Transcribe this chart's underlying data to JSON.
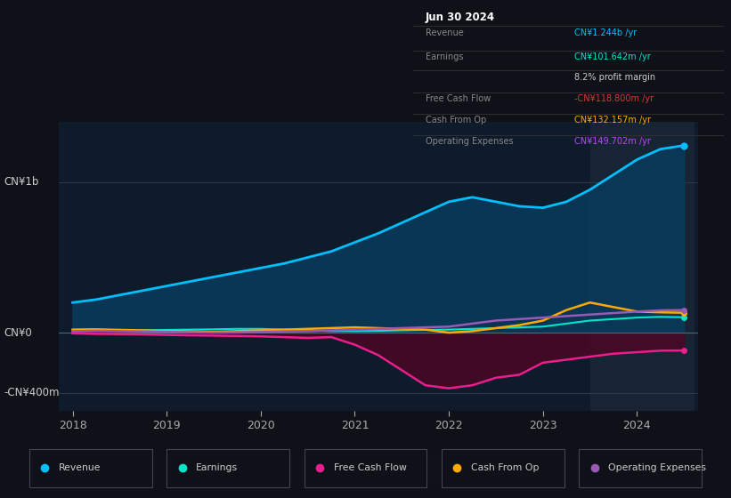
{
  "background_color": "#0e1117",
  "plot_bg_color": "#0d1b2a",
  "title_box": {
    "date": "Jun 30 2024",
    "rows": [
      {
        "label": "Revenue",
        "value": "CN¥1.244b /yr",
        "value_color": "#00bfff"
      },
      {
        "label": "Earnings",
        "value": "CN¥101.642m /yr",
        "value_color": "#00e5cc"
      },
      {
        "label": "",
        "value": "8.2% profit margin",
        "value_color": "#cccccc"
      },
      {
        "label": "Free Cash Flow",
        "value": "-CN¥118.800m /yr",
        "value_color": "#e63232"
      },
      {
        "label": "Cash From Op",
        "value": "CN¥132.157m /yr",
        "value_color": "#ffaa00"
      },
      {
        "label": "Operating Expenses",
        "value": "CN¥149.702m /yr",
        "value_color": "#bb44ff"
      }
    ]
  },
  "ylabel_top": "CN¥1b",
  "ylabel_zero": "CN¥0",
  "ylabel_bottom": "-CN¥400m",
  "ylim_top": 1400,
  "ylim_bottom": -520,
  "years": [
    2018.0,
    2018.25,
    2018.5,
    2018.75,
    2019.0,
    2019.25,
    2019.5,
    2019.75,
    2020.0,
    2020.25,
    2020.5,
    2020.75,
    2021.0,
    2021.25,
    2021.5,
    2021.75,
    2022.0,
    2022.25,
    2022.5,
    2022.75,
    2023.0,
    2023.25,
    2023.5,
    2023.75,
    2024.0,
    2024.25,
    2024.5
  ],
  "revenue": [
    200,
    220,
    250,
    280,
    310,
    340,
    370,
    400,
    430,
    460,
    500,
    540,
    600,
    660,
    730,
    800,
    870,
    900,
    870,
    840,
    830,
    870,
    950,
    1050,
    1150,
    1220,
    1244
  ],
  "earnings": [
    10,
    12,
    14,
    16,
    18,
    20,
    22,
    25,
    25,
    20,
    15,
    10,
    10,
    12,
    15,
    18,
    20,
    25,
    30,
    35,
    40,
    60,
    80,
    90,
    100,
    105,
    102
  ],
  "free_cash_flow": [
    -5,
    -8,
    -10,
    -12,
    -15,
    -18,
    -20,
    -22,
    -25,
    -30,
    -35,
    -30,
    -80,
    -150,
    -250,
    -350,
    -370,
    -350,
    -300,
    -280,
    -200,
    -180,
    -160,
    -140,
    -130,
    -120,
    -119
  ],
  "cash_from_op": [
    20,
    22,
    18,
    15,
    10,
    8,
    5,
    10,
    15,
    20,
    25,
    30,
    35,
    30,
    25,
    20,
    0,
    10,
    30,
    50,
    80,
    150,
    200,
    170,
    140,
    135,
    132
  ],
  "operating_expenses": [
    10,
    12,
    10,
    8,
    5,
    3,
    0,
    2,
    5,
    8,
    10,
    15,
    20,
    25,
    30,
    35,
    40,
    60,
    80,
    90,
    100,
    110,
    120,
    130,
    140,
    148,
    150
  ],
  "revenue_color": "#00bfff",
  "earnings_color": "#00e5cc",
  "fcf_color": "#e91e8c",
  "cashop_color": "#ffaa00",
  "opex_color": "#9b59b6",
  "revenue_fill": "#0a3a5c",
  "fcf_fill": "#4a0825",
  "highlight_x_start": 2023.5,
  "highlight_x_end": 2024.6,
  "xlim": [
    2017.85,
    2024.65
  ],
  "xtick_years": [
    2018,
    2019,
    2020,
    2021,
    2022,
    2023,
    2024
  ]
}
